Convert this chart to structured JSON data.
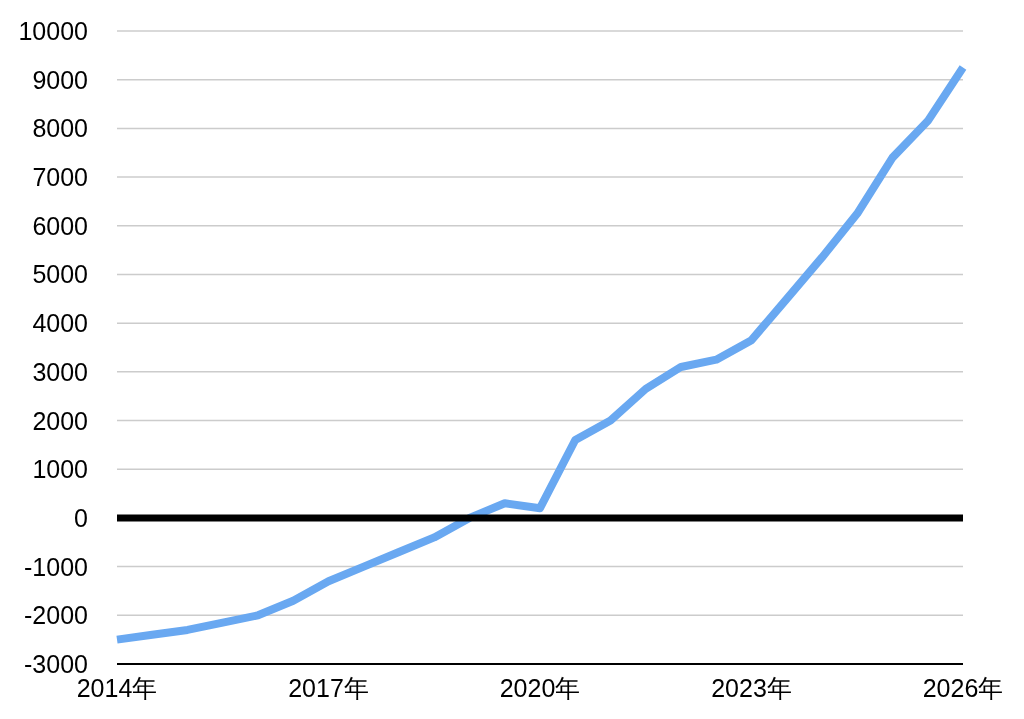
{
  "chart_data": {
    "type": "line",
    "x": [
      2014,
      2014.5,
      2015,
      2015.5,
      2016,
      2016.5,
      2017,
      2017.5,
      2018,
      2018.5,
      2019,
      2019.5,
      2020,
      2020.5,
      2021,
      2021.5,
      2022,
      2022.5,
      2023,
      2023.5,
      2024,
      2024.5,
      2025,
      2025.5,
      2026
    ],
    "values": [
      -2500,
      -2400,
      -2300,
      -2150,
      -2000,
      -1700,
      -1300,
      -1000,
      -700,
      -400,
      0,
      300,
      200,
      1600,
      2000,
      2650,
      3100,
      3250,
      3650,
      4500,
      5350,
      6250,
      7400,
      8150,
      9250
    ],
    "color": "#69a8f1",
    "xlim": [
      2014,
      2026
    ],
    "xticks": [
      {
        "value": 2014,
        "label": "2014年"
      },
      {
        "value": 2017,
        "label": "2017年"
      },
      {
        "value": 2020,
        "label": "2020年"
      },
      {
        "value": 2023,
        "label": "2023年"
      },
      {
        "value": 2026,
        "label": "2026年"
      }
    ],
    "ylim": [
      -3000,
      10000
    ],
    "yticks": [
      -3000,
      -2000,
      -1000,
      0,
      1000,
      2000,
      3000,
      4000,
      5000,
      6000,
      7000,
      8000,
      9000,
      10000
    ],
    "grid": "y",
    "ref_lines": [
      {
        "axis": "y",
        "value": 0,
        "color": "#000000"
      }
    ]
  }
}
